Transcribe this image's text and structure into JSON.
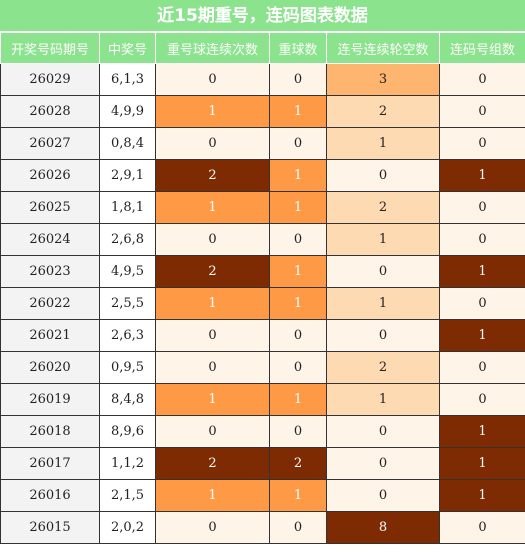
{
  "title": "近15期重号，连码图表数据",
  "headers": [
    "开奖号码期号",
    "中奖号",
    "重号球连续次数",
    "重球数",
    "连号连续轮空数",
    "连码号组数"
  ],
  "colors": {
    "header_bg": "#8ce38e",
    "light": "#fff4e8",
    "orange": "#fe9a46",
    "dark": "#7e2a03",
    "gap_light": "#fedab2",
    "gap_mid": "#fdb56f"
  },
  "rows": [
    {
      "issue": "26029",
      "draw": "6,1,3",
      "repeat_streak": "0",
      "repeat_count": "0",
      "consec_gap": "3",
      "consec_groups": "0"
    },
    {
      "issue": "26028",
      "draw": "4,9,9",
      "repeat_streak": "1",
      "repeat_count": "1",
      "consec_gap": "2",
      "consec_groups": "0"
    },
    {
      "issue": "26027",
      "draw": "0,8,4",
      "repeat_streak": "0",
      "repeat_count": "0",
      "consec_gap": "1",
      "consec_groups": "0"
    },
    {
      "issue": "26026",
      "draw": "2,9,1",
      "repeat_streak": "2",
      "repeat_count": "1",
      "consec_gap": "0",
      "consec_groups": "1"
    },
    {
      "issue": "26025",
      "draw": "1,8,1",
      "repeat_streak": "1",
      "repeat_count": "1",
      "consec_gap": "2",
      "consec_groups": "0"
    },
    {
      "issue": "26024",
      "draw": "2,6,8",
      "repeat_streak": "0",
      "repeat_count": "0",
      "consec_gap": "1",
      "consec_groups": "0"
    },
    {
      "issue": "26023",
      "draw": "4,9,5",
      "repeat_streak": "2",
      "repeat_count": "1",
      "consec_gap": "0",
      "consec_groups": "1"
    },
    {
      "issue": "26022",
      "draw": "2,5,5",
      "repeat_streak": "1",
      "repeat_count": "1",
      "consec_gap": "1",
      "consec_groups": "0"
    },
    {
      "issue": "26021",
      "draw": "2,6,3",
      "repeat_streak": "0",
      "repeat_count": "0",
      "consec_gap": "0",
      "consec_groups": "1"
    },
    {
      "issue": "26020",
      "draw": "0,9,5",
      "repeat_streak": "0",
      "repeat_count": "0",
      "consec_gap": "2",
      "consec_groups": "0"
    },
    {
      "issue": "26019",
      "draw": "8,4,8",
      "repeat_streak": "1",
      "repeat_count": "1",
      "consec_gap": "1",
      "consec_groups": "0"
    },
    {
      "issue": "26018",
      "draw": "8,9,6",
      "repeat_streak": "0",
      "repeat_count": "0",
      "consec_gap": "0",
      "consec_groups": "1"
    },
    {
      "issue": "26017",
      "draw": "1,1,2",
      "repeat_streak": "2",
      "repeat_count": "2",
      "consec_gap": "0",
      "consec_groups": "1"
    },
    {
      "issue": "26016",
      "draw": "2,1,5",
      "repeat_streak": "1",
      "repeat_count": "1",
      "consec_gap": "0",
      "consec_groups": "1"
    },
    {
      "issue": "26015",
      "draw": "2,0,2",
      "repeat_streak": "0",
      "repeat_count": "0",
      "consec_gap": "8",
      "consec_groups": "0"
    }
  ]
}
